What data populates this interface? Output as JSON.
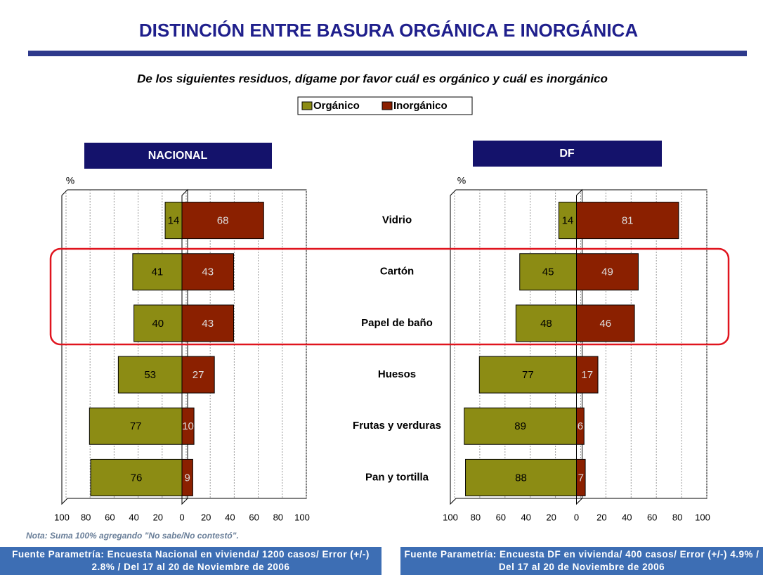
{
  "header": {
    "title": "DISTINCIÓN ENTRE BASURA ORGÁNICA E INORGÁNICA",
    "subtitle": "De los siguientes residuos, dígame por favor cuál es orgánico y cuál es inorgánico"
  },
  "chart_data": [
    {
      "type": "bar",
      "title": "NACIONAL",
      "ylabel": "%",
      "categories": [
        "Vidrio",
        "Cartón",
        "Papel de baño",
        "Huesos",
        "Frutas y verduras",
        "Pan y tortilla"
      ],
      "series": [
        {
          "name": "Orgánico",
          "color": "#8c8c14",
          "values": [
            14,
            41,
            40,
            53,
            77,
            76
          ]
        },
        {
          "name": "Inorgánico",
          "color": "#8b2000",
          "values": [
            68,
            43,
            43,
            27,
            10,
            9
          ]
        }
      ],
      "xlim": [
        -100,
        100
      ],
      "xticks": [
        {
          "value": -100,
          "label": "100"
        },
        {
          "value": -80,
          "label": "80"
        },
        {
          "value": -60,
          "label": "60"
        },
        {
          "value": -40,
          "label": "40"
        },
        {
          "value": -20,
          "label": "20"
        },
        0,
        20,
        40,
        60,
        80,
        100
      ],
      "grid": true
    },
    {
      "type": "bar",
      "title": "DF",
      "ylabel": "%",
      "series": [
        {
          "color": "#8c8c14",
          "values": [
            14,
            45,
            48,
            77,
            89,
            88
          ]
        },
        {
          "color": "#8b2000",
          "values": [
            81,
            49,
            46,
            17,
            6,
            7
          ]
        }
      ],
      "xlim": [
        -100,
        100
      ],
      "xticks": [
        {
          "value": -100,
          "label": "100"
        },
        {
          "value": -80,
          "label": "80"
        },
        {
          "value": -60,
          "label": "60"
        },
        {
          "value": -40,
          "label": "40"
        },
        {
          "value": -20,
          "label": "20"
        },
        0,
        20,
        40,
        60,
        80,
        100
      ],
      "grid": true
    }
  ],
  "note": "Nota: Suma 100% agregando  \"No sabe/No contestó\".",
  "sources": [
    "Fuente Parametría: Encuesta Nacional en vivienda/ 1200 casos/ Error (+/-) 2.8% /  Del 17 al 20 de Noviembre de 2006",
    "Fuente Parametría: Encuesta  DF en vivienda/ 400 casos/ Error (+/-) 4.9% /  Del 17 al 20 de Noviembre de 2006"
  ]
}
